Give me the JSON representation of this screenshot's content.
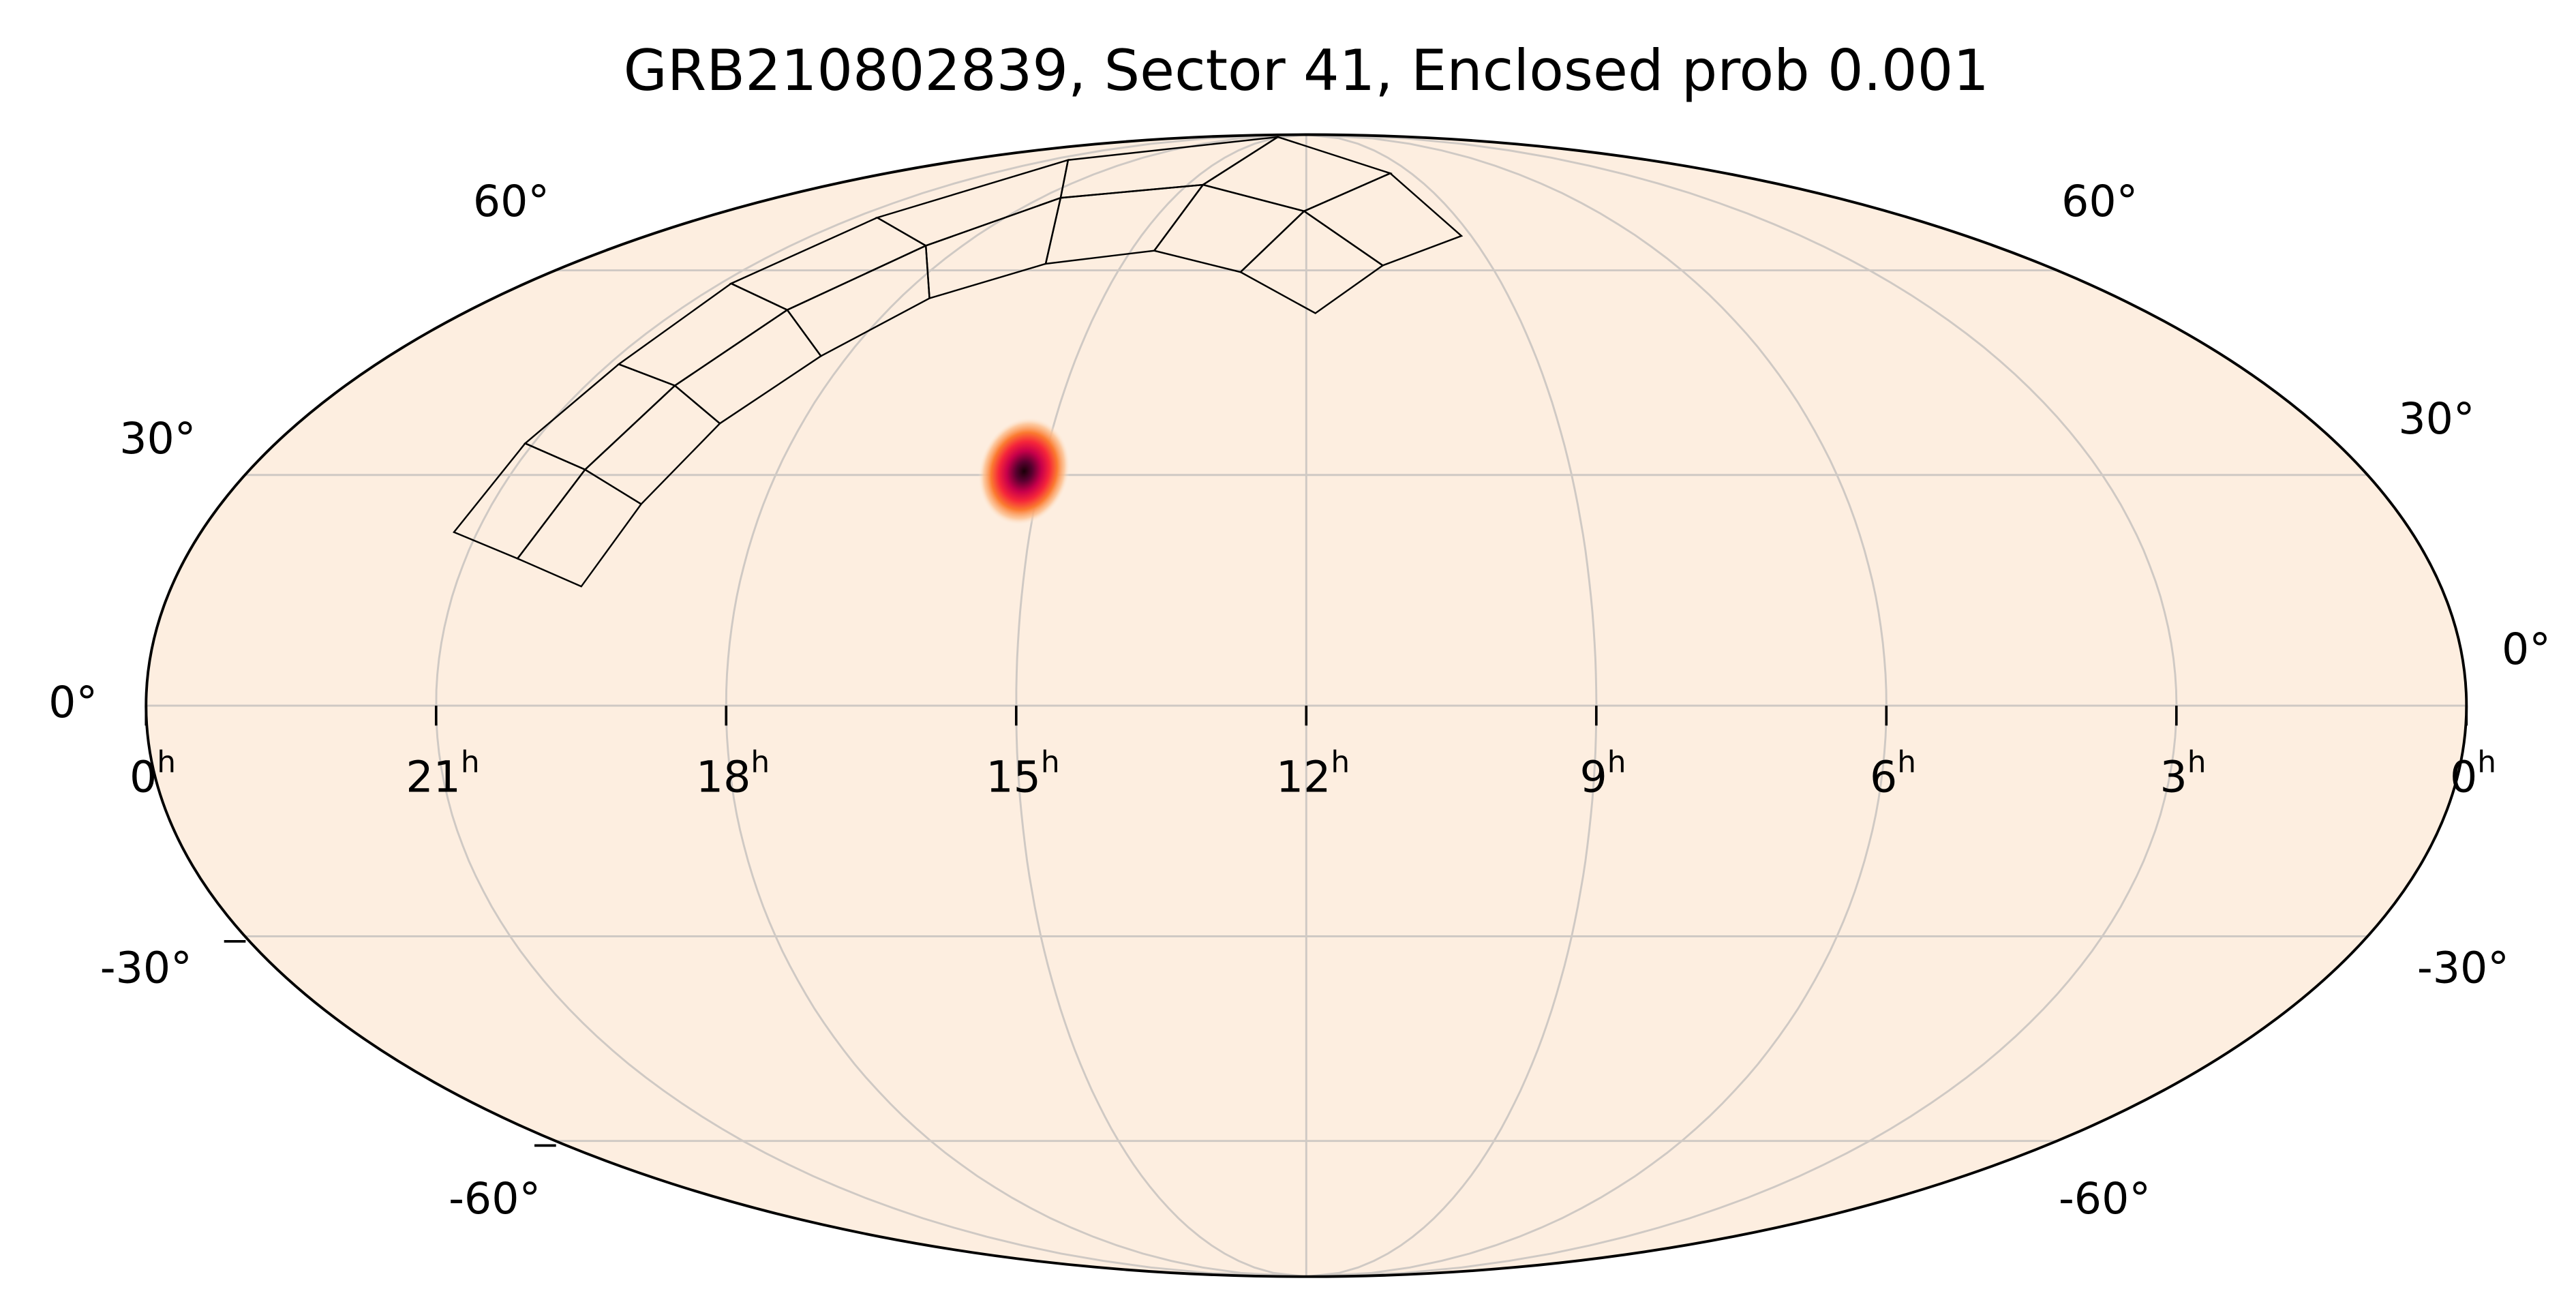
{
  "chart_data": {
    "type": "heatmap",
    "projection": "mollweide",
    "title": "GRB210802839, Sector 41, Enclosed prob 0.001",
    "background_color": "#fdeee0",
    "grid": true,
    "ra_ticks_hours": [
      0,
      21,
      18,
      15,
      12,
      9,
      6,
      3,
      0
    ],
    "ra_tick_labels": [
      "0",
      "21",
      "18",
      "15",
      "12",
      "9",
      "6",
      "3",
      "0"
    ],
    "ra_unit_label": "h",
    "dec_ticks_deg": [
      60,
      30,
      0,
      -30,
      -60
    ],
    "dec_tick_labels": [
      "60°",
      "30°",
      "0°",
      "-30°",
      "-60°"
    ],
    "probability_peak": {
      "ra_deg": 228,
      "dec_deg": 30.5,
      "colormap": "magma_r"
    },
    "footprint": "TESS Sector 41 camera/CCD outlines (4 cameras x 4 CCDs)"
  }
}
